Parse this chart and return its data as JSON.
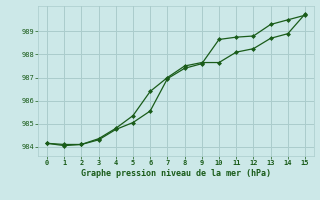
{
  "title": "Graphe pression niveau de la mer (hPa)",
  "background_color": "#cce8e8",
  "grid_color": "#aacccc",
  "line_color": "#1a5c1a",
  "xlim": [
    -0.5,
    15.5
  ],
  "ylim": [
    983.6,
    990.1
  ],
  "x_ticks": [
    0,
    1,
    2,
    3,
    4,
    5,
    6,
    7,
    8,
    9,
    10,
    11,
    12,
    13,
    14,
    15
  ],
  "y_ticks": [
    984,
    985,
    986,
    987,
    988,
    989
  ],
  "series1_x": [
    0,
    1,
    2,
    3,
    4,
    5,
    6,
    7,
    8,
    9,
    10,
    11,
    12,
    13,
    14,
    15
  ],
  "series1_y": [
    984.15,
    984.1,
    984.1,
    984.35,
    984.8,
    985.35,
    986.4,
    987.0,
    987.5,
    987.65,
    987.65,
    988.1,
    988.25,
    988.7,
    988.9,
    989.75
  ],
  "series2_x": [
    0,
    1,
    2,
    3,
    4,
    5,
    6,
    7,
    8,
    9,
    10,
    11,
    12,
    13,
    14,
    15
  ],
  "series2_y": [
    984.15,
    984.05,
    984.1,
    984.3,
    984.75,
    985.05,
    985.55,
    986.95,
    987.4,
    987.6,
    988.65,
    988.75,
    988.8,
    989.3,
    989.5,
    989.7
  ]
}
